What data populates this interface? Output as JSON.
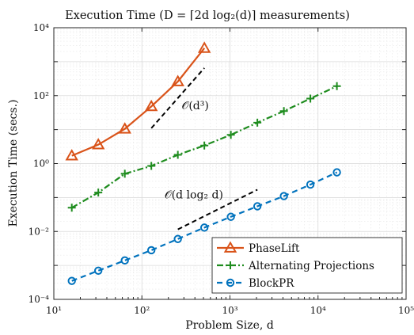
{
  "chart_data": {
    "type": "line",
    "title": "Execution Time (D = ⌈2d log₂(d)⌉ measurements)",
    "xlabel": "Problem Size, d",
    "ylabel": "Execution Time (secs.)",
    "xscale": "log",
    "yscale": "log",
    "xlim": [
      10,
      100000
    ],
    "ylim": [
      0.0001,
      10000
    ],
    "xtick_labels": [
      "10¹",
      "10²",
      "10³",
      "10⁴",
      "10⁵"
    ],
    "ytick_labels": [
      "10⁻⁴",
      "10⁻²",
      "10⁰",
      "10²",
      "10⁴"
    ],
    "grid": true,
    "legend_position": "bottom-right",
    "series": [
      {
        "name": "PhaseLift",
        "color": "#D95319",
        "marker": "triangle",
        "line": "solid",
        "x": [
          16,
          32,
          64,
          128,
          256,
          512
        ],
        "y": [
          1.7,
          3.6,
          10.5,
          48,
          260,
          2500
        ]
      },
      {
        "name": "Alternating Projections",
        "color": "#1E8C1E",
        "marker": "plus",
        "line": "dashdot",
        "x": [
          16,
          32,
          64,
          128,
          256,
          512,
          1024,
          2048,
          4096,
          8192,
          16384
        ],
        "y": [
          0.05,
          0.14,
          0.5,
          0.85,
          1.8,
          3.4,
          7,
          16,
          35,
          82,
          190
        ]
      },
      {
        "name": "BlockPR",
        "color": "#0072BD",
        "marker": "circle",
        "line": "dashed",
        "x": [
          16,
          32,
          64,
          128,
          256,
          512,
          1024,
          2048,
          4096,
          8192,
          16384
        ],
        "y": [
          0.00035,
          0.0007,
          0.0014,
          0.0028,
          0.006,
          0.013,
          0.027,
          0.055,
          0.11,
          0.24,
          0.55
        ]
      }
    ],
    "reference_lines": [
      {
        "label": "𝒪(d³)",
        "x": [
          128,
          512
        ],
        "y": [
          11,
          650
        ]
      },
      {
        "label": "𝒪(d log₂ d)",
        "x": [
          256,
          2048
        ],
        "y": [
          0.0115,
          0.17
        ]
      }
    ]
  }
}
